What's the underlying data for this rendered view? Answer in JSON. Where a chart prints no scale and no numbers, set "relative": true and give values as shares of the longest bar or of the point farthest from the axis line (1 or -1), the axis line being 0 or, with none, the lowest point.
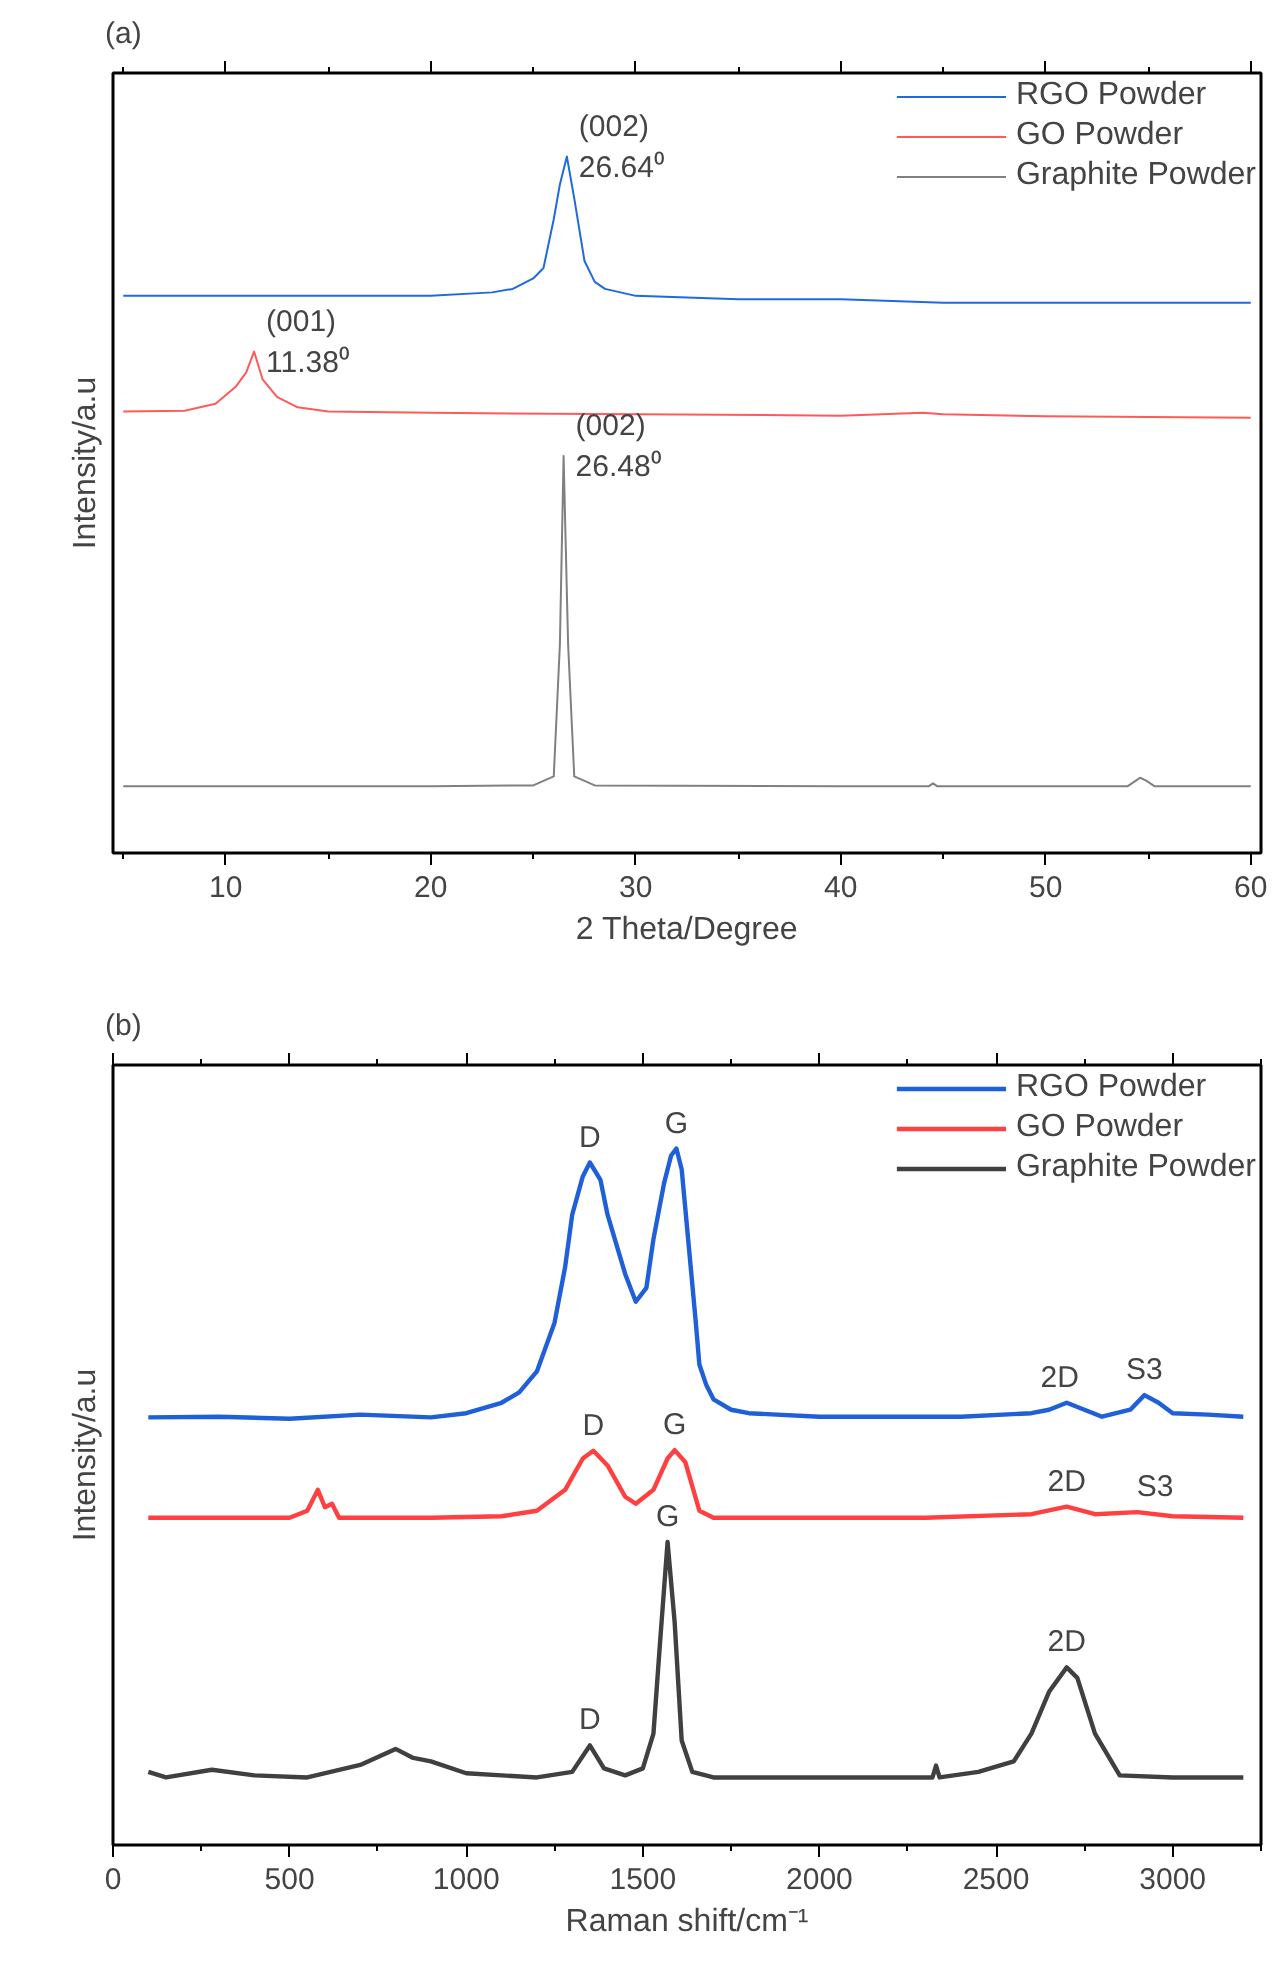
{
  "chart_data": [
    {
      "type": "line",
      "title": "(a)",
      "xlabel": "2 Theta/Degree",
      "ylabel": "Intensity/a.u",
      "relative": true,
      "xlim": [
        4.5,
        60.5
      ],
      "xticks": [
        10,
        20,
        30,
        40,
        50,
        60
      ],
      "legend": "top right",
      "grid": false,
      "marker": "none",
      "line_style": "solid",
      "series": [
        {
          "name": "RGO Powder",
          "color": "#1f6ae0",
          "x": [
            5,
            10,
            15,
            20,
            23,
            24,
            25,
            25.5,
            26,
            26.3,
            26.64,
            27,
            27.5,
            28,
            28.5,
            30,
            35,
            40,
            45,
            50,
            55,
            60
          ],
          "values": [
            0.8,
            0.8,
            0.8,
            0.8,
            0.805,
            0.81,
            0.825,
            0.84,
            0.91,
            0.96,
            1.0,
            0.94,
            0.85,
            0.82,
            0.81,
            0.8,
            0.795,
            0.795,
            0.79,
            0.79,
            0.79,
            0.79
          ]
        },
        {
          "name": "GO Powder",
          "color": "#ff5a5a",
          "x": [
            5,
            8,
            9.5,
            10.5,
            11,
            11.38,
            11.8,
            12.5,
            13.5,
            15,
            20,
            30,
            40,
            44,
            45,
            50,
            60
          ],
          "values": [
            0.634,
            0.635,
            0.645,
            0.67,
            0.69,
            0.72,
            0.68,
            0.655,
            0.64,
            0.634,
            0.632,
            0.63,
            0.628,
            0.632,
            0.63,
            0.627,
            0.625
          ]
        },
        {
          "name": "Graphite Powder",
          "color": "#808080",
          "x": [
            5,
            20,
            25,
            26,
            26.3,
            26.48,
            26.7,
            27,
            28,
            40,
            44.3,
            44.5,
            44.7,
            54,
            54.4,
            54.6,
            54.9,
            55.3,
            60
          ],
          "values": [
            0.096,
            0.096,
            0.097,
            0.11,
            0.3,
            0.57,
            0.3,
            0.11,
            0.097,
            0.096,
            0.096,
            0.1,
            0.096,
            0.096,
            0.104,
            0.108,
            0.104,
            0.096,
            0.096
          ]
        }
      ],
      "annotations": [
        {
          "text": "(002)\n26.64⁰",
          "x": 26.64,
          "y": 1.0
        },
        {
          "text": "(001)\n11.38⁰",
          "x": 11.38,
          "y": 0.72
        },
        {
          "text": "(002)\n26.48⁰",
          "x": 26.48,
          "y": 0.57
        }
      ]
    },
    {
      "type": "line",
      "title": "(b)",
      "xlabel": "Raman shift/cm⁻¹",
      "ylabel": "Intensity/a.u",
      "relative": true,
      "xlim": [
        0,
        3250
      ],
      "xticks": [
        0,
        500,
        1000,
        1500,
        2000,
        2500,
        3000
      ],
      "legend": "top right",
      "grid": false,
      "marker": "none",
      "line_style": "solid",
      "series": [
        {
          "name": "RGO Powder",
          "color": "#1f5fd8",
          "x": [
            100,
            300,
            500,
            700,
            900,
            1000,
            1100,
            1150,
            1200,
            1250,
            1280,
            1300,
            1330,
            1350,
            1380,
            1400,
            1450,
            1480,
            1510,
            1530,
            1560,
            1580,
            1595,
            1610,
            1630,
            1650,
            1660,
            1680,
            1700,
            1750,
            1800,
            2000,
            2400,
            2600,
            2650,
            2700,
            2750,
            2800,
            2880,
            2920,
            2960,
            3000,
            3100,
            3200
          ],
          "values": [
            0.614,
            0.615,
            0.612,
            0.618,
            0.614,
            0.62,
            0.635,
            0.65,
            0.68,
            0.75,
            0.83,
            0.905,
            0.96,
            0.98,
            0.955,
            0.905,
            0.82,
            0.78,
            0.8,
            0.87,
            0.95,
            0.99,
            1.0,
            0.97,
            0.86,
            0.75,
            0.69,
            0.66,
            0.64,
            0.625,
            0.62,
            0.615,
            0.615,
            0.62,
            0.625,
            0.635,
            0.625,
            0.615,
            0.625,
            0.646,
            0.635,
            0.62,
            0.618,
            0.615
          ]
        },
        {
          "name": "GO Powder",
          "color": "#ff4040",
          "x": [
            100,
            300,
            500,
            550,
            580,
            600,
            620,
            640,
            700,
            900,
            1100,
            1200,
            1280,
            1330,
            1360,
            1400,
            1450,
            1480,
            1530,
            1570,
            1590,
            1620,
            1660,
            1700,
            1900,
            2300,
            2600,
            2700,
            2780,
            2900,
            3000,
            3200
          ],
          "values": [
            0.47,
            0.47,
            0.47,
            0.48,
            0.51,
            0.485,
            0.49,
            0.47,
            0.47,
            0.47,
            0.472,
            0.48,
            0.51,
            0.555,
            0.566,
            0.545,
            0.5,
            0.49,
            0.51,
            0.555,
            0.567,
            0.55,
            0.48,
            0.47,
            0.47,
            0.47,
            0.475,
            0.486,
            0.475,
            0.478,
            0.472,
            0.47
          ]
        },
        {
          "name": "Graphite Powder",
          "color": "#404040",
          "x": [
            100,
            150,
            280,
            400,
            550,
            700,
            800,
            850,
            900,
            1000,
            1200,
            1300,
            1350,
            1390,
            1450,
            1500,
            1530,
            1550,
            1570,
            1590,
            1610,
            1640,
            1700,
            2000,
            2320,
            2330,
            2340,
            2450,
            2550,
            2600,
            2650,
            2700,
            2730,
            2780,
            2850,
            3000,
            3200
          ],
          "values": [
            0.105,
            0.097,
            0.108,
            0.1,
            0.097,
            0.115,
            0.138,
            0.125,
            0.12,
            0.103,
            0.097,
            0.105,
            0.143,
            0.11,
            0.1,
            0.11,
            0.16,
            0.3,
            0.435,
            0.32,
            0.15,
            0.105,
            0.097,
            0.097,
            0.097,
            0.114,
            0.097,
            0.105,
            0.12,
            0.16,
            0.22,
            0.255,
            0.24,
            0.16,
            0.1,
            0.097,
            0.097
          ]
        }
      ],
      "annotations": [
        {
          "text": "D",
          "x": 1350,
          "y": 0.98
        },
        {
          "text": "G",
          "x": 1595,
          "y": 1.0
        },
        {
          "text": "2D",
          "x": 2680,
          "y": 0.635
        },
        {
          "text": "S3",
          "x": 2920,
          "y": 0.646
        },
        {
          "text": "D",
          "x": 1360,
          "y": 0.566
        },
        {
          "text": "G",
          "x": 1590,
          "y": 0.567
        },
        {
          "text": "2D",
          "x": 2700,
          "y": 0.486
        },
        {
          "text": "S3",
          "x": 2950,
          "y": 0.478
        },
        {
          "text": "D",
          "x": 1350,
          "y": 0.143
        },
        {
          "text": "G",
          "x": 1570,
          "y": 0.435
        },
        {
          "text": "2D",
          "x": 2700,
          "y": 0.255
        }
      ]
    }
  ]
}
